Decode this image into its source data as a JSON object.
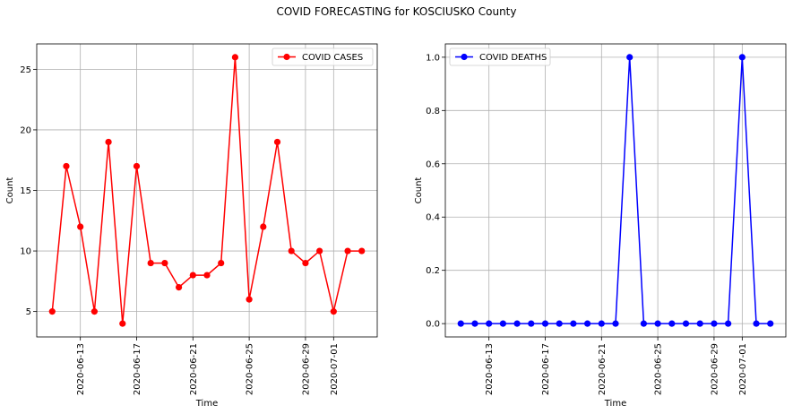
{
  "figure": {
    "title": "COVID FORECASTING for KOSCIUSKO County"
  },
  "chart_data": [
    {
      "type": "line",
      "x": [
        "2020-06-11",
        "2020-06-12",
        "2020-06-13",
        "2020-06-14",
        "2020-06-15",
        "2020-06-16",
        "2020-06-17",
        "2020-06-18",
        "2020-06-19",
        "2020-06-20",
        "2020-06-21",
        "2020-06-22",
        "2020-06-23",
        "2020-06-24",
        "2020-06-25",
        "2020-06-26",
        "2020-06-27",
        "2020-06-28",
        "2020-06-29",
        "2020-06-30",
        "2020-07-01",
        "2020-07-02",
        "2020-07-03"
      ],
      "series": [
        {
          "name": "COVID CASES",
          "color": "#ff0000",
          "values": [
            5,
            17,
            12,
            5,
            19,
            4,
            17,
            9,
            9,
            7,
            8,
            8,
            9,
            26,
            6,
            12,
            19,
            10,
            9,
            10,
            5,
            10,
            10
          ]
        }
      ],
      "xlabel": "Time",
      "ylabel": "Count",
      "xticks": [
        "2020-06-13",
        "2020-06-17",
        "2020-06-21",
        "2020-06-25",
        "2020-06-29",
        "2020-07-01"
      ],
      "yticks": [
        5,
        10,
        15,
        20,
        25
      ],
      "ylim": [
        2.9,
        27.1
      ],
      "grid": true,
      "legend_position": "top-right"
    },
    {
      "type": "line",
      "x": [
        "2020-06-11",
        "2020-06-12",
        "2020-06-13",
        "2020-06-14",
        "2020-06-15",
        "2020-06-16",
        "2020-06-17",
        "2020-06-18",
        "2020-06-19",
        "2020-06-20",
        "2020-06-21",
        "2020-06-22",
        "2020-06-23",
        "2020-06-24",
        "2020-06-25",
        "2020-06-26",
        "2020-06-27",
        "2020-06-28",
        "2020-06-29",
        "2020-06-30",
        "2020-07-01",
        "2020-07-02",
        "2020-07-03"
      ],
      "series": [
        {
          "name": "COVID DEATHS",
          "color": "#0000ff",
          "values": [
            0,
            0,
            0,
            0,
            0,
            0,
            0,
            0,
            0,
            0,
            0,
            0,
            1,
            0,
            0,
            0,
            0,
            0,
            0,
            0,
            1,
            0,
            0
          ]
        }
      ],
      "xlabel": "Time",
      "ylabel": "Count",
      "xticks": [
        "2020-06-13",
        "2020-06-17",
        "2020-06-21",
        "2020-06-25",
        "2020-06-29",
        "2020-07-01"
      ],
      "yticks": [
        0.0,
        0.2,
        0.4,
        0.6,
        0.8,
        1.0
      ],
      "ytick_labels": [
        "0.0",
        "0.2",
        "0.4",
        "0.6",
        "0.8",
        "1.0"
      ],
      "ylim": [
        -0.05,
        1.05
      ],
      "grid": true,
      "legend_position": "top-left"
    }
  ]
}
